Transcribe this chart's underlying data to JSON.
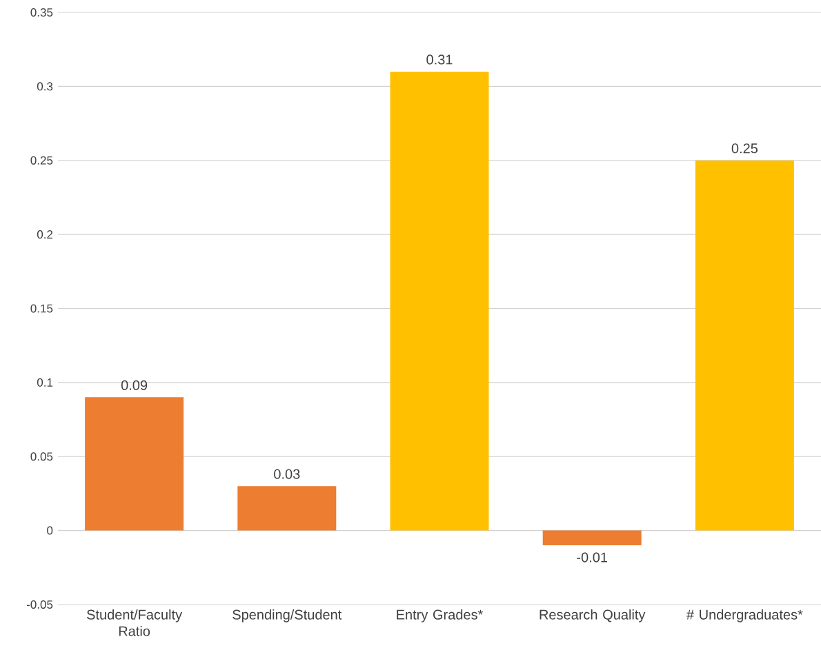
{
  "chart_data": {
    "type": "bar",
    "categories": [
      "Student/Faculty Ratio",
      "Spending/Student",
      "Entry Grades*",
      "Research Quality",
      "# Undergraduates*"
    ],
    "values": [
      0.09,
      0.03,
      0.31,
      -0.01,
      0.25
    ],
    "colors": [
      "#ed7d31",
      "#ed7d31",
      "#ffc000",
      "#ed7d31",
      "#ffc000"
    ],
    "ylim": [
      -0.05,
      0.35
    ],
    "yticks": [
      -0.05,
      0,
      0.05,
      0.1,
      0.15,
      0.2,
      0.25,
      0.3,
      0.35
    ],
    "grid": "y",
    "data_labels": true
  }
}
